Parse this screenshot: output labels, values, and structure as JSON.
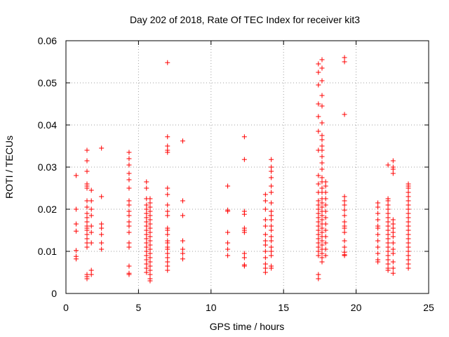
{
  "chart_data": {
    "type": "scatter",
    "title": "Day 202 of 2018, Rate Of TEC Index for receiver kit3",
    "xlabel": "GPS time / hours",
    "ylabel": "ROTI / TECUs",
    "xlim": [
      0,
      25
    ],
    "ylim": [
      0,
      0.06
    ],
    "xticks": [
      0,
      5,
      10,
      15,
      20,
      25
    ],
    "xtick_labels": [
      "0",
      "5",
      "10",
      "15",
      "20",
      "25"
    ],
    "yticks": [
      0,
      0.01,
      0.02,
      0.03,
      0.04,
      0.05,
      0.06
    ],
    "ytick_labels": [
      "0",
      "0.01",
      "0.02",
      "0.03",
      "0.04",
      "0.05",
      "0.06"
    ],
    "grid": true,
    "marker": "+",
    "marker_color": "#ff0000",
    "clusters": [
      {
        "x": 0.7,
        "y": [
          0.028,
          0.02,
          0.0165,
          0.0148,
          0.0102,
          0.0088,
          0.0082
        ]
      },
      {
        "x": 1.45,
        "y": [
          0.034,
          0.0315,
          0.029,
          0.026,
          0.0255,
          0.025,
          0.022,
          0.0205,
          0.019,
          0.018,
          0.017,
          0.016,
          0.0155,
          0.015,
          0.014,
          0.013,
          0.012,
          0.011,
          0.0045,
          0.004,
          0.0035
        ]
      },
      {
        "x": 1.75,
        "y": [
          0.0245,
          0.022,
          0.02,
          0.0185,
          0.016,
          0.0145,
          0.012,
          0.0055,
          0.0045
        ]
      },
      {
        "x": 2.45,
        "y": [
          0.0345,
          0.023,
          0.0165,
          0.0155,
          0.014,
          0.012,
          0.0105
        ]
      },
      {
        "x": 4.35,
        "y": [
          0.0335,
          0.032,
          0.0305,
          0.0285,
          0.027,
          0.025,
          0.022,
          0.021,
          0.0195,
          0.0185,
          0.017,
          0.016,
          0.0145,
          0.012,
          0.011,
          0.0065,
          0.0048,
          0.0045
        ]
      },
      {
        "x": 5.55,
        "y": [
          0.0265,
          0.025,
          0.0225,
          0.021,
          0.02,
          0.019,
          0.018,
          0.017,
          0.016,
          0.015,
          0.014,
          0.013,
          0.012,
          0.011,
          0.01,
          0.009,
          0.008,
          0.007,
          0.006,
          0.005
        ]
      },
      {
        "x": 5.8,
        "y": [
          0.0225,
          0.0215,
          0.0205,
          0.0195,
          0.0185,
          0.0175,
          0.0165,
          0.0155,
          0.0145,
          0.0135,
          0.0125,
          0.0115,
          0.0105,
          0.0095,
          0.0085,
          0.0075,
          0.0065,
          0.0055,
          0.0045,
          0.0035,
          0.003
        ]
      },
      {
        "x": 7.0,
        "y": [
          0.0548,
          0.0372,
          0.035,
          0.034,
          0.0335,
          0.025,
          0.0235,
          0.021,
          0.0195,
          0.0185,
          0.0155,
          0.015,
          0.014,
          0.0125,
          0.012,
          0.011,
          0.0105,
          0.0095,
          0.0085,
          0.0075,
          0.0065,
          0.0055
        ]
      },
      {
        "x": 8.05,
        "y": [
          0.0362,
          0.022,
          0.0185,
          0.0125,
          0.0105,
          0.0095,
          0.0082
        ]
      },
      {
        "x": 11.15,
        "y": [
          0.0255,
          0.0198,
          0.0195,
          0.0145,
          0.012,
          0.0105,
          0.009
        ]
      },
      {
        "x": 12.3,
        "y": [
          0.0372,
          0.0318,
          0.0195,
          0.0188,
          0.0155,
          0.015,
          0.0145,
          0.0095,
          0.0085,
          0.0068,
          0.0065
        ]
      },
      {
        "x": 13.75,
        "y": [
          0.0235,
          0.022,
          0.02,
          0.0175,
          0.016,
          0.014,
          0.0125,
          0.0115,
          0.01,
          0.0085,
          0.007,
          0.006,
          0.005
        ]
      },
      {
        "x": 14.15,
        "y": [
          0.0318,
          0.03,
          0.029,
          0.0275,
          0.0255,
          0.024,
          0.0215,
          0.0195,
          0.0185,
          0.0175,
          0.016,
          0.015,
          0.0135,
          0.0125,
          0.011,
          0.01,
          0.009,
          0.0065,
          0.006
        ]
      },
      {
        "x": 17.4,
        "y": [
          0.0545,
          0.0525,
          0.0495,
          0.045,
          0.042,
          0.0385,
          0.034,
          0.028,
          0.026,
          0.024,
          0.022,
          0.021,
          0.02,
          0.019,
          0.018,
          0.017,
          0.016,
          0.015,
          0.014,
          0.013,
          0.012,
          0.011,
          0.01,
          0.009,
          0.0045,
          0.0035
        ]
      },
      {
        "x": 17.65,
        "y": [
          0.0555,
          0.0535,
          0.0505,
          0.047,
          0.0445,
          0.0405,
          0.0375,
          0.0365,
          0.035,
          0.034,
          0.0325,
          0.031,
          0.0295,
          0.0275,
          0.0265,
          0.025,
          0.024,
          0.0225,
          0.0215,
          0.0205,
          0.0195,
          0.0185,
          0.0175,
          0.0165,
          0.0155,
          0.0145,
          0.0135,
          0.0125,
          0.0115,
          0.0105,
          0.0095,
          0.0085,
          0.0075
        ]
      },
      {
        "x": 17.9,
        "y": [
          0.0265,
          0.0255,
          0.024,
          0.0225,
          0.021,
          0.0195,
          0.018,
          0.0165,
          0.015,
          0.0135,
          0.012,
          0.0105,
          0.009
        ]
      },
      {
        "x": 19.2,
        "y": [
          0.056,
          0.055,
          0.0425,
          0.023,
          0.022,
          0.021,
          0.0198,
          0.0185,
          0.017,
          0.016,
          0.0155,
          0.0145,
          0.0125,
          0.011,
          0.0098,
          0.0092,
          0.009
        ]
      },
      {
        "x": 21.5,
        "y": [
          0.0215,
          0.0205,
          0.019,
          0.0175,
          0.016,
          0.0155,
          0.014,
          0.0125,
          0.011,
          0.0095,
          0.008,
          0.0075
        ]
      },
      {
        "x": 22.2,
        "y": [
          0.0305,
          0.0225,
          0.022,
          0.021,
          0.02,
          0.019,
          0.018,
          0.017,
          0.016,
          0.015,
          0.014,
          0.013,
          0.012,
          0.011,
          0.01,
          0.009,
          0.008,
          0.007,
          0.006,
          0.0055
        ]
      },
      {
        "x": 22.55,
        "y": [
          0.0315,
          0.03,
          0.0295,
          0.0285,
          0.0175,
          0.0165,
          0.0155,
          0.0145,
          0.0135,
          0.012,
          0.0105,
          0.0095,
          0.0075,
          0.006,
          0.0048
        ]
      },
      {
        "x": 23.6,
        "y": [
          0.026,
          0.0255,
          0.025,
          0.024,
          0.023,
          0.022,
          0.021,
          0.02,
          0.019,
          0.018,
          0.017,
          0.016,
          0.015,
          0.014,
          0.013,
          0.012,
          0.011,
          0.01,
          0.009,
          0.008,
          0.007,
          0.006
        ]
      }
    ]
  }
}
